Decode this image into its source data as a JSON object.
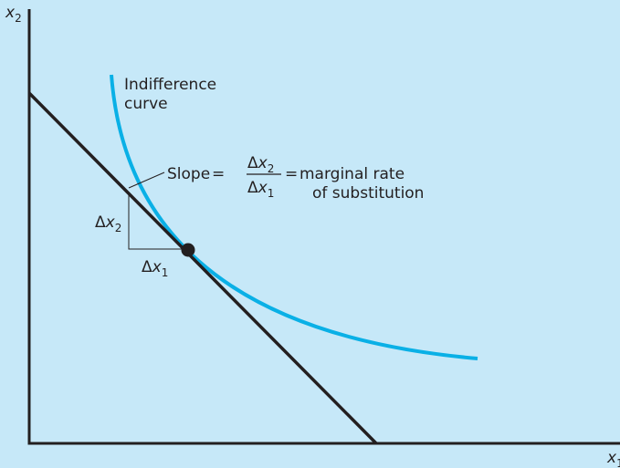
{
  "axes": {
    "y_label": "x",
    "y_label_sub": "2",
    "x_label": "x",
    "x_label_sub": "1"
  },
  "curve": {
    "label_line1": "Indifference",
    "label_line2": "curve"
  },
  "slope": {
    "prefix": "Slope",
    "equals1": "=",
    "numerator_delta": "Δ",
    "numerator_var": "x",
    "numerator_sub": "2",
    "denominator_delta": "Δ",
    "denominator_var": "x",
    "denominator_sub": "1",
    "equals2": "=",
    "mrs_line1": "marginal rate",
    "mrs_line2": "of substitution"
  },
  "triangle": {
    "dx2_delta": "Δ",
    "dx2_var": "x",
    "dx2_sub": "2",
    "dx1_delta": "Δ",
    "dx1_var": "x",
    "dx1_sub": "1"
  },
  "colors": {
    "background": "#c6e8f8",
    "curve": "#0ab0e6",
    "line": "#231f20"
  }
}
